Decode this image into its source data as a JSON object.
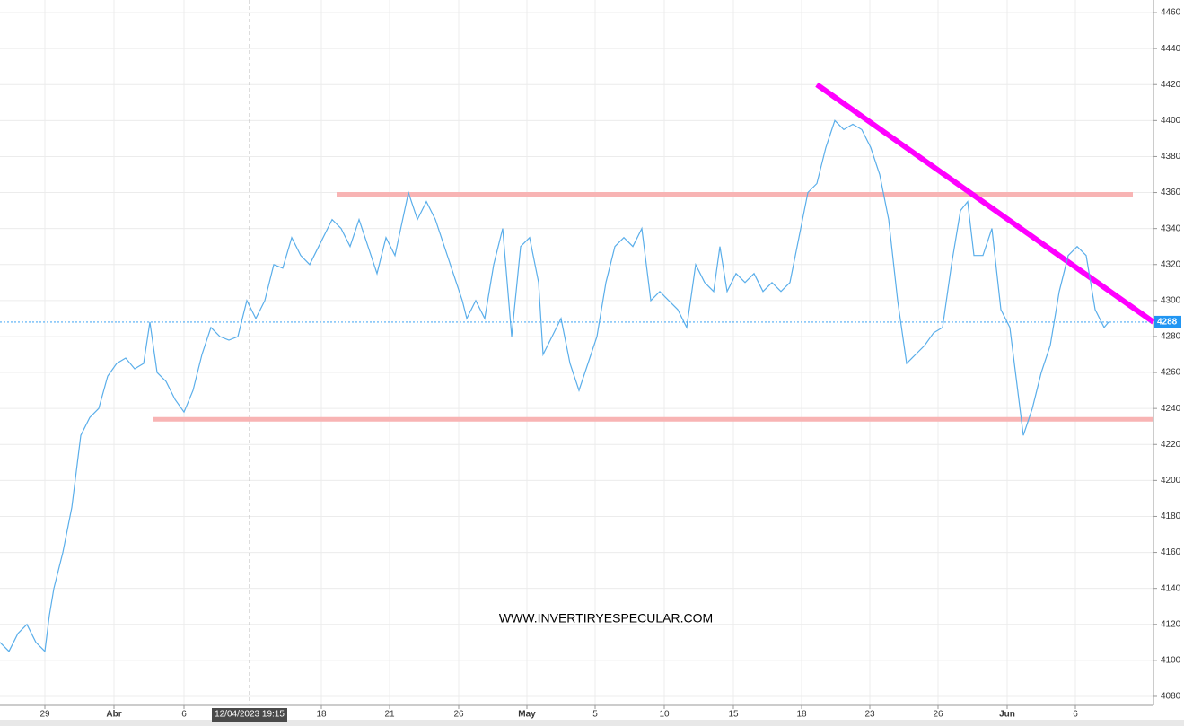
{
  "chart_data": {
    "type": "line",
    "watermark": "WWW.INVERTIRYESPECULAR.COM",
    "xlim": [
      0,
      128.5
    ],
    "ylim": [
      4075,
      4467
    ],
    "xticks": [
      {
        "value": 5,
        "label": "29"
      },
      {
        "value": 12.7,
        "label": "Abr"
      },
      {
        "value": 20.5,
        "label": "6"
      },
      {
        "value": 35.8,
        "label": "18"
      },
      {
        "value": 43.4,
        "label": "21"
      },
      {
        "value": 51.1,
        "label": "26"
      },
      {
        "value": 58.7,
        "label": "May"
      },
      {
        "value": 66.3,
        "label": "5"
      },
      {
        "value": 74,
        "label": "10"
      },
      {
        "value": 81.7,
        "label": "15"
      },
      {
        "value": 89.3,
        "label": "18"
      },
      {
        "value": 96.9,
        "label": "23"
      },
      {
        "value": 104.5,
        "label": "26"
      },
      {
        "value": 112.2,
        "label": "Jun"
      },
      {
        "value": 119.8,
        "label": "6"
      }
    ],
    "yticks": [
      4080,
      4100,
      4120,
      4140,
      4160,
      4180,
      4200,
      4220,
      4240,
      4260,
      4280,
      4300,
      4320,
      4340,
      4360,
      4380,
      4400,
      4420,
      4440,
      4460
    ],
    "crosshair": {
      "value": 27.8,
      "label": "12/04/2023 19:15"
    },
    "last_price": {
      "value": 4288,
      "label": "4288",
      "color": "#2196f3"
    },
    "grid": true,
    "series": [
      {
        "color": "#5aaeea",
        "x": [
          0,
          1,
          2,
          3,
          4,
          5,
          5.5,
          6,
          7,
          8,
          9,
          10,
          11,
          12,
          13,
          14,
          15,
          16,
          16.7,
          17.5,
          18.5,
          19.5,
          20.5,
          21.5,
          22.5,
          23.5,
          24.5,
          25.5,
          26.5,
          27.5,
          28.5,
          29.5,
          30.5,
          31.5,
          32.5,
          33.5,
          34.5,
          35.5,
          37,
          38,
          39,
          40,
          41,
          42,
          43,
          44,
          45.5,
          46.5,
          47.5,
          48.5,
          49.5,
          50.5,
          51.5,
          52,
          53,
          54,
          55,
          56,
          57,
          58,
          59,
          60,
          60.5,
          61.5,
          62.5,
          63.5,
          64.5,
          65.5,
          66.5,
          67.5,
          68.5,
          69.5,
          70.5,
          71.5,
          72.5,
          73.5,
          74.5,
          75.5,
          76.5,
          77.5,
          78.5,
          79.5,
          80.2,
          81,
          82,
          83,
          84,
          85,
          86,
          87,
          88,
          89,
          90,
          91,
          92,
          93,
          94,
          95,
          96,
          97,
          98,
          99,
          100,
          101,
          102,
          103,
          104,
          105,
          106,
          107,
          107.8,
          108.5,
          109.5,
          110.5,
          111.5,
          112.5,
          113,
          114,
          115,
          116,
          117,
          118,
          119,
          120,
          121,
          122,
          123,
          123.5
        ],
        "values": [
          4110,
          4105,
          4115,
          4120,
          4110,
          4105,
          4125,
          4140,
          4160,
          4185,
          4225,
          4235,
          4240,
          4258,
          4265,
          4268,
          4262,
          4265,
          4288,
          4260,
          4255,
          4245,
          4238,
          4250,
          4270,
          4285,
          4280,
          4278,
          4280,
          4300,
          4290,
          4300,
          4320,
          4318,
          4335,
          4325,
          4320,
          4330,
          4345,
          4340,
          4330,
          4345,
          4330,
          4315,
          4335,
          4325,
          4360,
          4345,
          4355,
          4345,
          4330,
          4315,
          4300,
          4290,
          4300,
          4290,
          4320,
          4340,
          4280,
          4330,
          4335,
          4310,
          4270,
          4280,
          4290,
          4265,
          4250,
          4265,
          4280,
          4310,
          4330,
          4335,
          4330,
          4340,
          4300,
          4305,
          4300,
          4295,
          4285,
          4320,
          4310,
          4305,
          4330,
          4305,
          4315,
          4310,
          4315,
          4305,
          4310,
          4305,
          4310,
          4335,
          4360,
          4365,
          4385,
          4400,
          4395,
          4398,
          4395,
          4385,
          4370,
          4345,
          4300,
          4265,
          4270,
          4275,
          4282,
          4285,
          4320,
          4350,
          4355,
          4325,
          4325,
          4340,
          4295,
          4285,
          4265,
          4225,
          4240,
          4260,
          4275,
          4305,
          4325,
          4330,
          4325,
          4295,
          4285,
          4288
        ]
      }
    ],
    "lines": [
      {
        "x": [
          37.5,
          126.2
        ],
        "y": [
          4359,
          4359
        ],
        "color": "#f8b4b4"
      },
      {
        "x": [
          17,
          128.5
        ],
        "y": [
          4234,
          4234
        ],
        "color": "#f8b4b4"
      },
      {
        "x": [
          91,
          128.5
        ],
        "y": [
          4420,
          4288
        ],
        "color": "#ff00ff"
      }
    ]
  }
}
